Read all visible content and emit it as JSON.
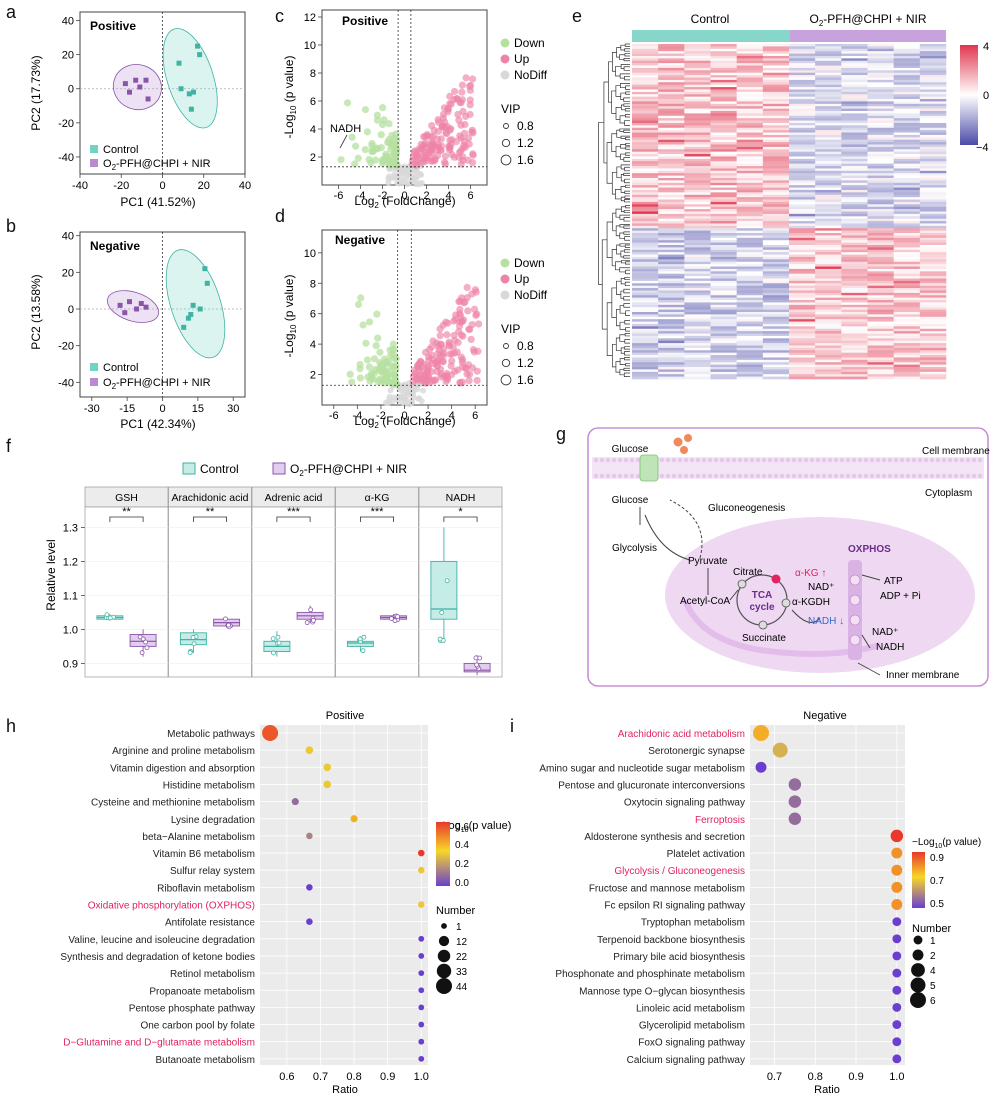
{
  "panel_letters": [
    "a",
    "b",
    "c",
    "d",
    "e",
    "f",
    "g",
    "h",
    "i"
  ],
  "colors": {
    "control": "#71d3c2",
    "control_dark": "#3fb3a4",
    "treat": "#b98ad0",
    "treat_dark": "#8a55a8",
    "down": "#b6e0a0",
    "up": "#ee82a8",
    "nodiff": "#d8d8d8",
    "highlight_text": "#e0245e",
    "heat_high": "#e0364f",
    "heat_low": "#4a4aa8"
  },
  "chart_data": [
    {
      "id": "a",
      "type": "scatter",
      "title": "Positive",
      "xlabel": "PC1  (41.52%)",
      "ylabel": "PC2  (17.73%)",
      "xlim": [
        -40,
        40
      ],
      "ylim": [
        -50,
        45
      ],
      "xticks": [
        -40,
        -20,
        0,
        20,
        40
      ],
      "yticks": [
        -40,
        -20,
        0,
        20,
        40
      ],
      "series": [
        {
          "name": "Control",
          "x": [
            17,
            8,
            13,
            14,
            9,
            15,
            18
          ],
          "y": [
            25,
            15,
            -3,
            -12,
            0,
            -2,
            20
          ]
        },
        {
          "name": "O2-PFH@CHPI + NIR",
          "legend_main": "O",
          "legend_sub": "2",
          "legend_rest": "-PFH@CHPI + NIR",
          "x": [
            -18,
            -13,
            -11,
            -8,
            -16,
            -7
          ],
          "y": [
            3,
            5,
            1,
            5,
            -2,
            -6
          ]
        }
      ]
    },
    {
      "id": "b",
      "type": "scatter",
      "title": "Negative",
      "xlabel": "PC1  (42.34%)",
      "ylabel": "PC2  (13.58%)",
      "xlim": [
        -35,
        35
      ],
      "ylim": [
        -48,
        42
      ],
      "xticks": [
        -30,
        -15,
        0,
        15,
        30
      ],
      "yticks": [
        -40,
        -20,
        0,
        20,
        40
      ],
      "series": [
        {
          "name": "Control",
          "x": [
            18,
            13,
            11,
            9,
            16,
            12,
            19
          ],
          "y": [
            22,
            2,
            -5,
            -10,
            0,
            -3,
            14
          ]
        },
        {
          "name": "O2-PFH@CHPI + NIR",
          "legend_main": "O",
          "legend_sub": "2",
          "legend_rest": "-PFH@CHPI + NIR",
          "x": [
            -18,
            -14,
            -11,
            -9,
            -16,
            -7
          ],
          "y": [
            2,
            4,
            0,
            3,
            -2,
            1
          ]
        }
      ]
    },
    {
      "id": "c",
      "type": "scatter",
      "title": "Positive",
      "xlabel_main": "Log",
      "xlabel_sub": "2",
      "xlabel_rest": " (FoldChange)",
      "ylabel_main": "-Log",
      "ylabel_sub": "10",
      "ylabel_rest": " (p value)",
      "xlim": [
        -7.5,
        7.5
      ],
      "ylim": [
        0,
        12.5
      ],
      "xticks": [
        -6,
        -4,
        -2,
        0,
        2,
        4,
        6
      ],
      "yticks": [
        2,
        4,
        6,
        8,
        10,
        12
      ],
      "thresholds": {
        "x": [
          -0.58,
          0.58
        ],
        "y": 1.3
      },
      "annotation": "NADH",
      "legend": [
        "Down",
        "Up",
        "NoDiff"
      ],
      "vip_title": "VIP",
      "vip_values": [
        "0.8",
        "1.2",
        "1.6"
      ],
      "points_per_group": {
        "down": 70,
        "up": 140,
        "nodiff": 60
      }
    },
    {
      "id": "d",
      "type": "scatter",
      "title": "Negative",
      "xlabel_main": "Log",
      "xlabel_sub": "2",
      "xlabel_rest": " (FoldChange)",
      "ylabel_main": "-Log",
      "ylabel_sub": "10",
      "ylabel_rest": " (p value)",
      "xlim": [
        -7,
        7
      ],
      "ylim": [
        0,
        11.5
      ],
      "xticks": [
        -6,
        -4,
        -2,
        0,
        2,
        4,
        6
      ],
      "yticks": [
        2,
        4,
        6,
        8,
        10
      ],
      "thresholds": {
        "x": [
          -0.58,
          0.58
        ],
        "y": 1.3
      },
      "legend": [
        "Down",
        "Up",
        "NoDiff"
      ],
      "vip_title": "VIP",
      "vip_values": [
        "0.8",
        "1.2",
        "1.6"
      ],
      "points_per_group": {
        "down": 80,
        "up": 150,
        "nodiff": 60
      }
    },
    {
      "id": "e",
      "type": "heatmap",
      "group_labels": [
        "Control"
      ],
      "group2_main": "O",
      "group2_sub": "2",
      "group2_rest": "-PFH@CHPI + NIR",
      "columns_per_group": 6,
      "rows": 140,
      "color_scale": [
        -4,
        0,
        4
      ],
      "colorbar_labels": [
        "4",
        "0",
        "−4"
      ]
    },
    {
      "id": "f",
      "type": "box",
      "ylabel": "Relative level",
      "ylim": [
        0.86,
        1.36
      ],
      "yticks": [
        "0.9",
        "1.0",
        "1.1",
        "1.2",
        "1.3"
      ],
      "legend": [
        "Control"
      ],
      "legend_treat_main": "O",
      "legend_treat_sub": "2",
      "legend_treat_rest": "-PFH@CHPI + NIR",
      "facets": [
        {
          "title": "GSH",
          "sig": "**",
          "control": {
            "q1": 1.03,
            "median": 1.035,
            "q3": 1.04,
            "min": 1.025,
            "max": 1.045
          },
          "treat": {
            "q1": 0.95,
            "median": 0.965,
            "q3": 0.985,
            "min": 0.92,
            "max": 1.0
          }
        },
        {
          "title": "Arachidonic acid",
          "sig": "**",
          "control": {
            "q1": 0.955,
            "median": 0.97,
            "q3": 0.99,
            "min": 0.93,
            "max": 1.0
          },
          "treat": {
            "q1": 1.01,
            "median": 1.02,
            "q3": 1.03,
            "min": 1.005,
            "max": 1.035
          }
        },
        {
          "title": "Adrenic acid",
          "sig": "***",
          "control": {
            "q1": 0.935,
            "median": 0.95,
            "q3": 0.965,
            "min": 0.92,
            "max": 0.995
          },
          "treat": {
            "q1": 1.03,
            "median": 1.04,
            "q3": 1.05,
            "min": 1.02,
            "max": 1.07
          }
        },
        {
          "title": "α-KG",
          "sig": "***",
          "control": {
            "q1": 0.95,
            "median": 0.96,
            "q3": 0.965,
            "min": 0.935,
            "max": 0.98
          },
          "treat": {
            "q1": 1.03,
            "median": 1.035,
            "q3": 1.04,
            "min": 1.025,
            "max": 1.045
          }
        },
        {
          "title": "NADH",
          "sig": "*",
          "control": {
            "q1": 1.03,
            "median": 1.06,
            "q3": 1.2,
            "min": 0.96,
            "max": 1.3
          },
          "treat": {
            "q1": 0.875,
            "median": 0.88,
            "q3": 0.9,
            "min": 0.865,
            "max": 0.925
          }
        }
      ]
    },
    {
      "id": "h",
      "type": "scatter",
      "title": "Positive",
      "xlabel": "Ratio",
      "xlim": [
        0.52,
        1.02
      ],
      "xticks": [
        "0.6",
        "0.7",
        "0.8",
        "0.9",
        "1.0"
      ],
      "legend_title_main": "−Log",
      "legend_title_sub": "10",
      "legend_title_rest": "(p value)",
      "color_ticks": [
        "0.6",
        "0.4",
        "0.2",
        "0.0"
      ],
      "size_title": "Number",
      "size_values": [
        "1",
        "12",
        "22",
        "33",
        "44"
      ],
      "pathways": [
        {
          "name": "Metabolic pathways",
          "ratio": 0.55,
          "logp": 0.55,
          "number": 44
        },
        {
          "name": "Arginine and proline metabolism",
          "ratio": 0.667,
          "logp": 0.3,
          "number": 4
        },
        {
          "name": "Vitamin digestion and absorption",
          "ratio": 0.72,
          "logp": 0.3,
          "number": 4
        },
        {
          "name": "Histidine metabolism",
          "ratio": 0.72,
          "logp": 0.3,
          "number": 4
        },
        {
          "name": "Cysteine and methionine metabolism",
          "ratio": 0.625,
          "logp": 0.1,
          "number": 3
        },
        {
          "name": "Lysine degradation",
          "ratio": 0.8,
          "logp": 0.4,
          "number": 3
        },
        {
          "name": "beta−Alanine metabolism",
          "ratio": 0.667,
          "logp": 0.15,
          "number": 2
        },
        {
          "name": "Vitamin B6 metabolism",
          "ratio": 1.0,
          "logp": 0.6,
          "number": 2
        },
        {
          "name": "Sulfur relay system",
          "ratio": 1.0,
          "logp": 0.3,
          "number": 2
        },
        {
          "name": "Riboflavin metabolism",
          "ratio": 0.667,
          "logp": 0.0,
          "number": 2
        },
        {
          "name": "Oxidative phosphorylation (OXPHOS)",
          "ratio": 1.0,
          "logp": 0.3,
          "number": 2,
          "highlight": true
        },
        {
          "name": "Antifolate resistance",
          "ratio": 0.667,
          "logp": 0.0,
          "number": 2
        },
        {
          "name": "Valine, leucine and isoleucine degradation",
          "ratio": 1.0,
          "logp": 0.0,
          "number": 1
        },
        {
          "name": "Synthesis and degradation of ketone bodies",
          "ratio": 1.0,
          "logp": 0.0,
          "number": 1
        },
        {
          "name": "Retinol metabolism",
          "ratio": 1.0,
          "logp": 0.0,
          "number": 1
        },
        {
          "name": "Propanoate metabolism",
          "ratio": 1.0,
          "logp": 0.0,
          "number": 1
        },
        {
          "name": "Pentose phosphate pathway",
          "ratio": 1.0,
          "logp": 0.0,
          "number": 1
        },
        {
          "name": "One carbon pool by folate",
          "ratio": 1.0,
          "logp": 0.0,
          "number": 1
        },
        {
          "name": "D−Glutamine and D−glutamate metabolism",
          "ratio": 1.0,
          "logp": 0.0,
          "number": 1,
          "highlight": true
        },
        {
          "name": "Butanoate metabolism",
          "ratio": 1.0,
          "logp": 0.0,
          "number": 1
        }
      ]
    },
    {
      "id": "i",
      "type": "scatter",
      "title": "Negative",
      "xlabel": "Ratio",
      "xlim": [
        0.64,
        1.02
      ],
      "xticks": [
        "0.7",
        "0.8",
        "0.9",
        "1.0"
      ],
      "legend_title_main": "−Log",
      "legend_title_sub": "10",
      "legend_title_rest": "(p value)",
      "color_ticks": [
        "0.9",
        "0.7",
        "0.5"
      ],
      "size_title": "Number",
      "size_values": [
        "1",
        "2",
        "4",
        "5",
        "6"
      ],
      "pathways": [
        {
          "name": "Arachidonic acid metabolism",
          "ratio": 0.667,
          "logp": 0.8,
          "number": 6,
          "highlight": true
        },
        {
          "name": "Serotonergic synapse",
          "ratio": 0.714,
          "logp": 0.65,
          "number": 5
        },
        {
          "name": "Amino sugar and nucleotide sugar metabolism",
          "ratio": 0.667,
          "logp": 0.4,
          "number": 2
        },
        {
          "name": "Pentose and glucuronate interconversions",
          "ratio": 0.75,
          "logp": 0.5,
          "number": 3
        },
        {
          "name": "Oxytocin signaling pathway",
          "ratio": 0.75,
          "logp": 0.5,
          "number": 3
        },
        {
          "name": "Ferroptosis",
          "ratio": 0.75,
          "logp": 0.5,
          "number": 3,
          "highlight": true
        },
        {
          "name": "Aldosterone synthesis and secretion",
          "ratio": 1.0,
          "logp": 1.0,
          "number": 3
        },
        {
          "name": "Platelet activation",
          "ratio": 1.0,
          "logp": 0.85,
          "number": 2
        },
        {
          "name": "Glycolysis / Gluconeogenesis",
          "ratio": 1.0,
          "logp": 0.85,
          "number": 2,
          "highlight": true
        },
        {
          "name": "Fructose and mannose metabolism",
          "ratio": 1.0,
          "logp": 0.85,
          "number": 2
        },
        {
          "name": "Fc epsilon RI signaling pathway",
          "ratio": 1.0,
          "logp": 0.85,
          "number": 2
        },
        {
          "name": "Tryptophan metabolism",
          "ratio": 1.0,
          "logp": 0.4,
          "number": 1
        },
        {
          "name": "Terpenoid backbone biosynthesis",
          "ratio": 1.0,
          "logp": 0.4,
          "number": 1
        },
        {
          "name": "Primary bile acid biosynthesis",
          "ratio": 1.0,
          "logp": 0.4,
          "number": 1
        },
        {
          "name": "Phosphonate and phosphinate metabolism",
          "ratio": 1.0,
          "logp": 0.4,
          "number": 1
        },
        {
          "name": "Mannose type O−glycan biosynthesis",
          "ratio": 1.0,
          "logp": 0.4,
          "number": 1
        },
        {
          "name": "Linoleic acid metabolism",
          "ratio": 1.0,
          "logp": 0.4,
          "number": 1
        },
        {
          "name": "Glycerolipid metabolism",
          "ratio": 1.0,
          "logp": 0.4,
          "number": 1
        },
        {
          "name": "FoxO signaling pathway",
          "ratio": 1.0,
          "logp": 0.4,
          "number": 1
        },
        {
          "name": "Calcium signaling pathway",
          "ratio": 1.0,
          "logp": 0.4,
          "number": 1
        }
      ]
    }
  ],
  "diagram_g": {
    "labels": {
      "glucose_out": "Glucose",
      "glucose_in": "Glucose",
      "cell_membrane": "Cell membrane",
      "cytoplasm": "Cytoplasm",
      "gluconeogenesis": "Gluconeogenesis",
      "glycolysis": "Glycolysis",
      "pyruvate": "Pyruvate",
      "citrate": "Citrate",
      "akg": "α-KG ↑",
      "nad_plus": "NAD⁺",
      "akgdh": "α-KGDH",
      "tca1": "TCA",
      "tca2": "cycle",
      "acetyl": "Acetyl-CoA",
      "succinate": "Succinate",
      "nadh_down": "NADH ↓",
      "oxphos": "OXPHOS",
      "atp": "ATP",
      "adp": "ADP + Pi",
      "nad2": "NAD⁺",
      "nadh2": "NADH",
      "inner": "Inner membrane"
    }
  }
}
